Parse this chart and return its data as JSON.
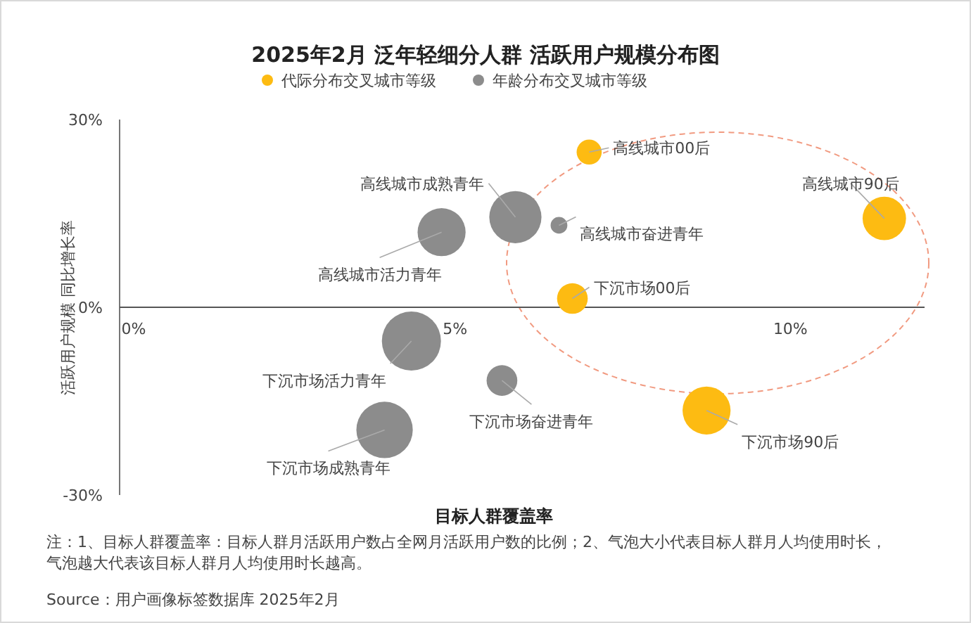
{
  "chart_data": {
    "type": "bubble",
    "title": "2025年2月 泛年轻细分人群 活跃用户规模分布图",
    "xlabel": "目标人群覆盖率",
    "ylabel": "活跃用户规模 同比增长率",
    "xlim": [
      0,
      12
    ],
    "ylim": [
      -30,
      30
    ],
    "xticks": [
      {
        "value": 0,
        "label": "0%"
      },
      {
        "value": 5,
        "label": "5%"
      },
      {
        "value": 10,
        "label": "10%"
      }
    ],
    "yticks": [
      {
        "value": -30,
        "label": "-30%"
      },
      {
        "value": 0,
        "label": "0%"
      },
      {
        "value": 30,
        "label": "30%"
      }
    ],
    "legend": "top",
    "series": [
      {
        "name": "代际分布交叉城市等级",
        "color": "#fdbb12",
        "x": [
          7.0,
          11.4,
          6.75,
          8.75
        ],
        "values": [
          24.8,
          14.2,
          1.4,
          -16.5
        ],
        "sizes": [
          0.18,
          0.54,
          0.27,
          0.66
        ]
      },
      {
        "name": "年龄分布交叉城市等级",
        "color": "#8c8c8c",
        "x": [
          5.9,
          6.55,
          4.8,
          4.35,
          5.7,
          3.95
        ],
        "values": [
          14.4,
          13.1,
          12.0,
          -5.4,
          -11.7,
          -19.6
        ],
        "sizes": [
          0.78,
          0.08,
          0.66,
          1,
          0.27,
          0.91
        ]
      }
    ],
    "annotations": [
      {
        "text": "高线城市00后",
        "x": 7.0,
        "y": 24.8
      },
      {
        "text": "高线城市90后",
        "x": 11.4,
        "y": 14.2
      },
      {
        "text": "下沉市场00后",
        "x": 6.75,
        "y": 1.4
      },
      {
        "text": "下沉市场90后",
        "x": 8.75,
        "y": -16.5
      },
      {
        "text": "高线城市成熟青年",
        "x": 5.9,
        "y": 14.4
      },
      {
        "text": "高线城市奋进青年",
        "x": 6.55,
        "y": 13.1
      },
      {
        "text": "高线城市活力青年",
        "x": 4.8,
        "y": 12.0
      },
      {
        "text": "下沉市场活力青年",
        "x": 4.35,
        "y": -5.4
      },
      {
        "text": "下沉市场奋进青年",
        "x": 5.7,
        "y": -11.7
      },
      {
        "text": "下沉市场成熟青年",
        "x": 3.95,
        "y": -19.6
      },
      "注：1、目标人群覆盖率：目标人群月活跃用户数占全网月活跃用户数的比例；2、气泡大小代表目标人群月人均使用时长，",
      "气泡越大代表该目标人群月人均使用时长越高。",
      "Source：用户画像标签数据库 2025年2月"
    ]
  }
}
